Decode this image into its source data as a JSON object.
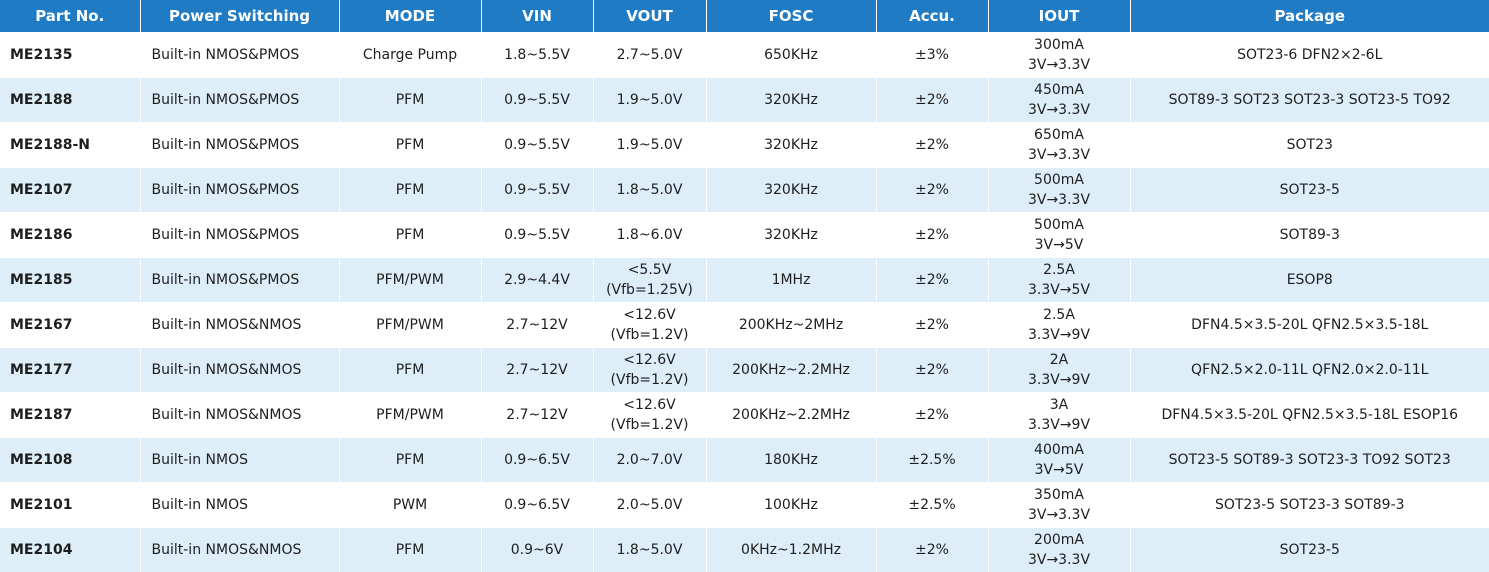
{
  "columns": [
    "Part No.",
    "Power Switching",
    "MODE",
    "VIN",
    "VOUT",
    "FOSC",
    "Accu.",
    "IOUT",
    "Package"
  ],
  "rows": [
    {
      "part": "ME2135",
      "switching": "Built-in NMOS&PMOS",
      "mode": "Charge Pump",
      "vin": "1.8~5.5V",
      "vout": [
        "2.7~5.0V"
      ],
      "fosc": "650KHz",
      "accu": "±3%",
      "iout": [
        "300mA",
        "3V→3.3V"
      ],
      "package": "SOT23-6 DFN2×2-6L"
    },
    {
      "part": "ME2188",
      "switching": "Built-in NMOS&PMOS",
      "mode": "PFM",
      "vin": "0.9~5.5V",
      "vout": [
        "1.9~5.0V"
      ],
      "fosc": "320KHz",
      "accu": "±2%",
      "iout": [
        "450mA",
        "3V→3.3V"
      ],
      "package": "SOT89-3 SOT23 SOT23-3 SOT23-5 TO92"
    },
    {
      "part": "ME2188-N",
      "switching": "Built-in NMOS&PMOS",
      "mode": "PFM",
      "vin": "0.9~5.5V",
      "vout": [
        "1.9~5.0V"
      ],
      "fosc": "320KHz",
      "accu": "±2%",
      "iout": [
        "650mA",
        "3V→3.3V"
      ],
      "package": "SOT23"
    },
    {
      "part": "ME2107",
      "switching": "Built-in NMOS&PMOS",
      "mode": "PFM",
      "vin": "0.9~5.5V",
      "vout": [
        "1.8~5.0V"
      ],
      "fosc": "320KHz",
      "accu": "±2%",
      "iout": [
        "500mA",
        "3V→3.3V"
      ],
      "package": "SOT23-5"
    },
    {
      "part": "ME2186",
      "switching": "Built-in NMOS&PMOS",
      "mode": "PFM",
      "vin": "0.9~5.5V",
      "vout": [
        "1.8~6.0V"
      ],
      "fosc": "320KHz",
      "accu": "±2%",
      "iout": [
        "500mA",
        "3V→5V"
      ],
      "package": "SOT89-3"
    },
    {
      "part": "ME2185",
      "switching": "Built-in NMOS&PMOS",
      "mode": "PFM/PWM",
      "vin": "2.9~4.4V",
      "vout": [
        "<5.5V",
        "(Vfb=1.25V)"
      ],
      "fosc": "1MHz",
      "accu": "±2%",
      "iout": [
        "2.5A",
        "3.3V→5V"
      ],
      "package": "ESOP8"
    },
    {
      "part": "ME2167",
      "switching": "Built-in NMOS&NMOS",
      "mode": "PFM/PWM",
      "vin": "2.7~12V",
      "vout": [
        "<12.6V",
        "(Vfb=1.2V)"
      ],
      "fosc": "200KHz~2MHz",
      "accu": "±2%",
      "iout": [
        "2.5A",
        "3.3V→9V"
      ],
      "package": "DFN4.5×3.5-20L QFN2.5×3.5-18L"
    },
    {
      "part": "ME2177",
      "switching": "Built-in NMOS&NMOS",
      "mode": "PFM",
      "vin": "2.7~12V",
      "vout": [
        "<12.6V",
        "(Vfb=1.2V)"
      ],
      "fosc": "200KHz~2.2MHz",
      "accu": "±2%",
      "iout": [
        "2A",
        "3.3V→9V"
      ],
      "package": "QFN2.5×2.0-11L QFN2.0×2.0-11L"
    },
    {
      "part": "ME2187",
      "switching": "Built-in NMOS&NMOS",
      "mode": "PFM/PWM",
      "vin": "2.7~12V",
      "vout": [
        "<12.6V",
        "(Vfb=1.2V)"
      ],
      "fosc": "200KHz~2.2MHz",
      "accu": "±2%",
      "iout": [
        "3A",
        "3.3V→9V"
      ],
      "package": "DFN4.5×3.5-20L QFN2.5×3.5-18L ESOP16"
    },
    {
      "part": "ME2108",
      "switching": "Built-in NMOS",
      "mode": "PFM",
      "vin": "0.9~6.5V",
      "vout": [
        "2.0~7.0V"
      ],
      "fosc": "180KHz",
      "accu": "±2.5%",
      "iout": [
        "400mA",
        "3V→5V"
      ],
      "package": "SOT23-5 SOT89-3 SOT23-3 TO92 SOT23"
    },
    {
      "part": "ME2101",
      "switching": "Built-in NMOS",
      "mode": "PWM",
      "vin": "0.9~6.5V",
      "vout": [
        "2.0~5.0V"
      ],
      "fosc": "100KHz",
      "accu": "±2.5%",
      "iout": [
        "350mA",
        "3V→3.3V"
      ],
      "package": "SOT23-5 SOT23-3 SOT89-3"
    },
    {
      "part": "ME2104",
      "switching": "Built-in NMOS&NMOS",
      "mode": "PFM",
      "vin": "0.9~6V",
      "vout": [
        "1.8~5.0V"
      ],
      "fosc": "0KHz~1.2MHz",
      "accu": "±2%",
      "iout": [
        "200mA",
        "3V→3.3V"
      ],
      "package": "SOT23-5"
    }
  ]
}
